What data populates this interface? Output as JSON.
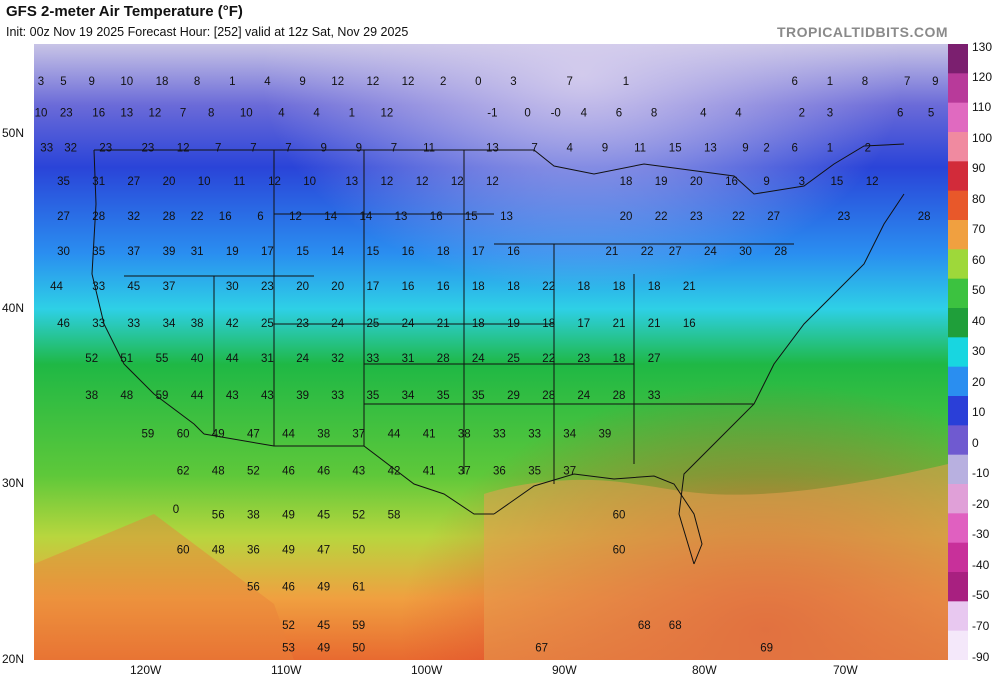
{
  "header": {
    "title": "GFS 2-meter Air Temperature (°F)",
    "subtitle": "Init: 00z Nov 19 2025   Forecast Hour: [252]   valid at 12z Sat, Nov 29 2025",
    "watermark": "TROPICALTIDBITS.COM"
  },
  "axes": {
    "lat_labels": [
      "50N",
      "40N",
      "30N",
      "20N"
    ],
    "lon_labels": [
      "120W",
      "110W",
      "100W",
      "90W",
      "80W",
      "70W"
    ]
  },
  "colorbar": {
    "labels": [
      "130",
      "120",
      "110",
      "100",
      "90",
      "80",
      "70",
      "60",
      "50",
      "40",
      "30",
      "20",
      "10",
      "0",
      "-10",
      "-20",
      "-30",
      "-40",
      "-50",
      "-70",
      "-90"
    ],
    "stops": [
      {
        "v": 130,
        "c": "#7b1f6f"
      },
      {
        "v": 120,
        "c": "#b83a9a"
      },
      {
        "v": 110,
        "c": "#e06ac0"
      },
      {
        "v": 100,
        "c": "#f08aa0"
      },
      {
        "v": 90,
        "c": "#d22b3a"
      },
      {
        "v": 80,
        "c": "#e8582a"
      },
      {
        "v": 70,
        "c": "#f0a040"
      },
      {
        "v": 60,
        "c": "#9ed83a"
      },
      {
        "v": 50,
        "c": "#3cc240"
      },
      {
        "v": 40,
        "c": "#1f9f3a"
      },
      {
        "v": 30,
        "c": "#18d6e0"
      },
      {
        "v": 20,
        "c": "#2a8ef0"
      },
      {
        "v": 10,
        "c": "#2a3fd8"
      },
      {
        "v": 0,
        "c": "#6f5ad0"
      },
      {
        "v": -10,
        "c": "#b8b0e0"
      },
      {
        "v": -20,
        "c": "#e0a0d8"
      },
      {
        "v": -30,
        "c": "#e060c0"
      },
      {
        "v": -40,
        "c": "#c8309a"
      },
      {
        "v": -50,
        "c": "#a82080"
      },
      {
        "v": -70,
        "c": "#e8c8f0"
      },
      {
        "v": -90,
        "c": "#f4e8fa"
      }
    ]
  },
  "map_values": [
    {
      "t": "3",
      "lon": -127.6,
      "lat": 53.0
    },
    {
      "t": "5",
      "lon": -126.0,
      "lat": 53.0
    },
    {
      "t": "9",
      "lon": -124.0,
      "lat": 53.0
    },
    {
      "t": "10",
      "lon": -121.5,
      "lat": 53.0
    },
    {
      "t": "18",
      "lon": -119.0,
      "lat": 53.0
    },
    {
      "t": "8",
      "lon": -116.5,
      "lat": 53.0
    },
    {
      "t": "1",
      "lon": -114.0,
      "lat": 53.0
    },
    {
      "t": "4",
      "lon": -111.5,
      "lat": 53.0
    },
    {
      "t": "9",
      "lon": -109.0,
      "lat": 53.0
    },
    {
      "t": "12",
      "lon": -106.5,
      "lat": 53.0
    },
    {
      "t": "12",
      "lon": -104.0,
      "lat": 53.0
    },
    {
      "t": "12",
      "lon": -101.5,
      "lat": 53.0
    },
    {
      "t": "2",
      "lon": -99.0,
      "lat": 53.0
    },
    {
      "t": "0",
      "lon": -96.5,
      "lat": 53.0
    },
    {
      "t": "3",
      "lon": -94.0,
      "lat": 53.0
    },
    {
      "t": "7",
      "lon": -90.0,
      "lat": 53.0
    },
    {
      "t": "1",
      "lon": -86.0,
      "lat": 53.0
    },
    {
      "t": "6",
      "lon": -74.0,
      "lat": 53.0
    },
    {
      "t": "1",
      "lon": -71.5,
      "lat": 53.0
    },
    {
      "t": "8",
      "lon": -69.0,
      "lat": 53.0
    },
    {
      "t": "7",
      "lon": -66.0,
      "lat": 53.0
    },
    {
      "t": "9",
      "lon": -64.0,
      "lat": 53.0
    },
    {
      "t": "10",
      "lon": -127.6,
      "lat": 51.2
    },
    {
      "t": "23",
      "lon": -125.8,
      "lat": 51.2
    },
    {
      "t": "16",
      "lon": -123.5,
      "lat": 51.2
    },
    {
      "t": "13",
      "lon": -121.5,
      "lat": 51.2
    },
    {
      "t": "12",
      "lon": -119.5,
      "lat": 51.2
    },
    {
      "t": "7",
      "lon": -117.5,
      "lat": 51.2
    },
    {
      "t": "8",
      "lon": -115.5,
      "lat": 51.2
    },
    {
      "t": "10",
      "lon": -113.0,
      "lat": 51.2
    },
    {
      "t": "4",
      "lon": -110.5,
      "lat": 51.2
    },
    {
      "t": "4",
      "lon": -108.0,
      "lat": 51.2
    },
    {
      "t": "1",
      "lon": -105.5,
      "lat": 51.2
    },
    {
      "t": "12",
      "lon": -103.0,
      "lat": 51.2
    },
    {
      "t": "-1",
      "lon": -95.5,
      "lat": 51.2
    },
    {
      "t": "0",
      "lon": -93.0,
      "lat": 51.2
    },
    {
      "t": "-0",
      "lon": -91.0,
      "lat": 51.2
    },
    {
      "t": "4",
      "lon": -89.0,
      "lat": 51.2
    },
    {
      "t": "6",
      "lon": -86.5,
      "lat": 51.2
    },
    {
      "t": "8",
      "lon": -84.0,
      "lat": 51.2
    },
    {
      "t": "4",
      "lon": -80.5,
      "lat": 51.2
    },
    {
      "t": "4",
      "lon": -78.0,
      "lat": 51.2
    },
    {
      "t": "2",
      "lon": -73.5,
      "lat": 51.2
    },
    {
      "t": "3",
      "lon": -71.5,
      "lat": 51.2
    },
    {
      "t": "6",
      "lon": -66.5,
      "lat": 51.2
    },
    {
      "t": "5",
      "lon": -64.3,
      "lat": 51.2
    },
    {
      "t": "33",
      "lon": -127.2,
      "lat": 49.2
    },
    {
      "t": "32",
      "lon": -125.5,
      "lat": 49.2
    },
    {
      "t": "23",
      "lon": -123.0,
      "lat": 49.2
    },
    {
      "t": "23",
      "lon": -120.0,
      "lat": 49.2
    },
    {
      "t": "12",
      "lon": -117.5,
      "lat": 49.2
    },
    {
      "t": "7",
      "lon": -115.0,
      "lat": 49.2
    },
    {
      "t": "7",
      "lon": -112.5,
      "lat": 49.2
    },
    {
      "t": "7",
      "lon": -110.0,
      "lat": 49.2
    },
    {
      "t": "9",
      "lon": -107.5,
      "lat": 49.2
    },
    {
      "t": "9",
      "lon": -105.0,
      "lat": 49.2
    },
    {
      "t": "7",
      "lon": -102.5,
      "lat": 49.2
    },
    {
      "t": "11",
      "lon": -100.0,
      "lat": 49.2
    },
    {
      "t": "13",
      "lon": -95.5,
      "lat": 49.2
    },
    {
      "t": "7",
      "lon": -92.5,
      "lat": 49.2
    },
    {
      "t": "4",
      "lon": -90.0,
      "lat": 49.2
    },
    {
      "t": "9",
      "lon": -87.5,
      "lat": 49.2
    },
    {
      "t": "11",
      "lon": -85.0,
      "lat": 49.2
    },
    {
      "t": "15",
      "lon": -82.5,
      "lat": 49.2
    },
    {
      "t": "13",
      "lon": -80.0,
      "lat": 49.2
    },
    {
      "t": "9",
      "lon": -77.5,
      "lat": 49.2
    },
    {
      "t": "2",
      "lon": -76.0,
      "lat": 49.2
    },
    {
      "t": "6",
      "lon": -74.0,
      "lat": 49.2
    },
    {
      "t": "1",
      "lon": -71.5,
      "lat": 49.2
    },
    {
      "t": "2",
      "lon": -68.8,
      "lat": 49.2
    },
    {
      "t": "35",
      "lon": -126.0,
      "lat": 47.3
    },
    {
      "t": "31",
      "lon": -123.5,
      "lat": 47.3
    },
    {
      "t": "27",
      "lon": -121.0,
      "lat": 47.3
    },
    {
      "t": "20",
      "lon": -118.5,
      "lat": 47.3
    },
    {
      "t": "10",
      "lon": -116.0,
      "lat": 47.3
    },
    {
      "t": "11",
      "lon": -113.5,
      "lat": 47.3
    },
    {
      "t": "12",
      "lon": -111.0,
      "lat": 47.3
    },
    {
      "t": "10",
      "lon": -108.5,
      "lat": 47.3
    },
    {
      "t": "13",
      "lon": -105.5,
      "lat": 47.3
    },
    {
      "t": "12",
      "lon": -103.0,
      "lat": 47.3
    },
    {
      "t": "12",
      "lon": -100.5,
      "lat": 47.3
    },
    {
      "t": "12",
      "lon": -98.0,
      "lat": 47.3
    },
    {
      "t": "12",
      "lon": -95.5,
      "lat": 47.3
    },
    {
      "t": "18",
      "lon": -86.0,
      "lat": 47.3
    },
    {
      "t": "19",
      "lon": -83.5,
      "lat": 47.3
    },
    {
      "t": "20",
      "lon": -81.0,
      "lat": 47.3
    },
    {
      "t": "16",
      "lon": -78.5,
      "lat": 47.3
    },
    {
      "t": "9",
      "lon": -76.0,
      "lat": 47.3
    },
    {
      "t": "3",
      "lon": -73.5,
      "lat": 47.3
    },
    {
      "t": "15",
      "lon": -71.0,
      "lat": 47.3
    },
    {
      "t": "12",
      "lon": -68.5,
      "lat": 47.3
    },
    {
      "t": "27",
      "lon": -126.0,
      "lat": 45.3
    },
    {
      "t": "28",
      "lon": -123.5,
      "lat": 45.3
    },
    {
      "t": "32",
      "lon": -121.0,
      "lat": 45.3
    },
    {
      "t": "28",
      "lon": -118.5,
      "lat": 45.3
    },
    {
      "t": "22",
      "lon": -116.5,
      "lat": 45.3
    },
    {
      "t": "16",
      "lon": -114.5,
      "lat": 45.3
    },
    {
      "t": "6",
      "lon": -112.0,
      "lat": 45.3
    },
    {
      "t": "12",
      "lon": -109.5,
      "lat": 45.3
    },
    {
      "t": "14",
      "lon": -107.0,
      "lat": 45.3
    },
    {
      "t": "14",
      "lon": -104.5,
      "lat": 45.3
    },
    {
      "t": "13",
      "lon": -102.0,
      "lat": 45.3
    },
    {
      "t": "16",
      "lon": -99.5,
      "lat": 45.3
    },
    {
      "t": "15",
      "lon": -97.0,
      "lat": 45.3
    },
    {
      "t": "13",
      "lon": -94.5,
      "lat": 45.3
    },
    {
      "t": "20",
      "lon": -86.0,
      "lat": 45.3
    },
    {
      "t": "22",
      "lon": -83.5,
      "lat": 45.3
    },
    {
      "t": "23",
      "lon": -81.0,
      "lat": 45.3
    },
    {
      "t": "22",
      "lon": -78.0,
      "lat": 45.3
    },
    {
      "t": "27",
      "lon": -75.5,
      "lat": 45.3
    },
    {
      "t": "23",
      "lon": -70.5,
      "lat": 45.3
    },
    {
      "t": "28",
      "lon": -64.8,
      "lat": 45.3
    },
    {
      "t": "30",
      "lon": -126.0,
      "lat": 43.3
    },
    {
      "t": "35",
      "lon": -123.5,
      "lat": 43.3
    },
    {
      "t": "37",
      "lon": -121.0,
      "lat": 43.3
    },
    {
      "t": "39",
      "lon": -118.5,
      "lat": 43.3
    },
    {
      "t": "31",
      "lon": -116.5,
      "lat": 43.3
    },
    {
      "t": "19",
      "lon": -114.0,
      "lat": 43.3
    },
    {
      "t": "17",
      "lon": -111.5,
      "lat": 43.3
    },
    {
      "t": "15",
      "lon": -109.0,
      "lat": 43.3
    },
    {
      "t": "14",
      "lon": -106.5,
      "lat": 43.3
    },
    {
      "t": "15",
      "lon": -104.0,
      "lat": 43.3
    },
    {
      "t": "16",
      "lon": -101.5,
      "lat": 43.3
    },
    {
      "t": "18",
      "lon": -99.0,
      "lat": 43.3
    },
    {
      "t": "17",
      "lon": -96.5,
      "lat": 43.3
    },
    {
      "t": "16",
      "lon": -94.0,
      "lat": 43.3
    },
    {
      "t": "21",
      "lon": -87.0,
      "lat": 43.3
    },
    {
      "t": "22",
      "lon": -84.5,
      "lat": 43.3
    },
    {
      "t": "27",
      "lon": -82.5,
      "lat": 43.3
    },
    {
      "t": "24",
      "lon": -80.0,
      "lat": 43.3
    },
    {
      "t": "30",
      "lon": -77.5,
      "lat": 43.3
    },
    {
      "t": "28",
      "lon": -75.0,
      "lat": 43.3
    },
    {
      "t": "44",
      "lon": -126.5,
      "lat": 41.3
    },
    {
      "t": "33",
      "lon": -123.5,
      "lat": 41.3
    },
    {
      "t": "45",
      "lon": -121.0,
      "lat": 41.3
    },
    {
      "t": "37",
      "lon": -118.5,
      "lat": 41.3
    },
    {
      "t": "30",
      "lon": -114.0,
      "lat": 41.3
    },
    {
      "t": "23",
      "lon": -111.5,
      "lat": 41.3
    },
    {
      "t": "20",
      "lon": -109.0,
      "lat": 41.3
    },
    {
      "t": "20",
      "lon": -106.5,
      "lat": 41.3
    },
    {
      "t": "17",
      "lon": -104.0,
      "lat": 41.3
    },
    {
      "t": "16",
      "lon": -101.5,
      "lat": 41.3
    },
    {
      "t": "16",
      "lon": -99.0,
      "lat": 41.3
    },
    {
      "t": "18",
      "lon": -96.5,
      "lat": 41.3
    },
    {
      "t": "18",
      "lon": -94.0,
      "lat": 41.3
    },
    {
      "t": "22",
      "lon": -91.5,
      "lat": 41.3
    },
    {
      "t": "18",
      "lon": -89.0,
      "lat": 41.3
    },
    {
      "t": "18",
      "lon": -86.5,
      "lat": 41.3
    },
    {
      "t": "18",
      "lon": -84.0,
      "lat": 41.3
    },
    {
      "t": "21",
      "lon": -81.5,
      "lat": 41.3
    },
    {
      "t": "46",
      "lon": -126.0,
      "lat": 39.2
    },
    {
      "t": "33",
      "lon": -123.5,
      "lat": 39.2
    },
    {
      "t": "33",
      "lon": -121.0,
      "lat": 39.2
    },
    {
      "t": "34",
      "lon": -118.5,
      "lat": 39.2
    },
    {
      "t": "38",
      "lon": -116.5,
      "lat": 39.2
    },
    {
      "t": "42",
      "lon": -114.0,
      "lat": 39.2
    },
    {
      "t": "25",
      "lon": -111.5,
      "lat": 39.2
    },
    {
      "t": "23",
      "lon": -109.0,
      "lat": 39.2
    },
    {
      "t": "24",
      "lon": -106.5,
      "lat": 39.2
    },
    {
      "t": "25",
      "lon": -104.0,
      "lat": 39.2
    },
    {
      "t": "24",
      "lon": -101.5,
      "lat": 39.2
    },
    {
      "t": "21",
      "lon": -99.0,
      "lat": 39.2
    },
    {
      "t": "18",
      "lon": -96.5,
      "lat": 39.2
    },
    {
      "t": "19",
      "lon": -94.0,
      "lat": 39.2
    },
    {
      "t": "18",
      "lon": -91.5,
      "lat": 39.2
    },
    {
      "t": "17",
      "lon": -89.0,
      "lat": 39.2
    },
    {
      "t": "21",
      "lon": -86.5,
      "lat": 39.2
    },
    {
      "t": "21",
      "lon": -84.0,
      "lat": 39.2
    },
    {
      "t": "16",
      "lon": -81.5,
      "lat": 39.2
    },
    {
      "t": "52",
      "lon": -124.0,
      "lat": 37.2
    },
    {
      "t": "51",
      "lon": -121.5,
      "lat": 37.2
    },
    {
      "t": "55",
      "lon": -119.0,
      "lat": 37.2
    },
    {
      "t": "40",
      "lon": -116.5,
      "lat": 37.2
    },
    {
      "t": "44",
      "lon": -114.0,
      "lat": 37.2
    },
    {
      "t": "31",
      "lon": -111.5,
      "lat": 37.2
    },
    {
      "t": "24",
      "lon": -109.0,
      "lat": 37.2
    },
    {
      "t": "32",
      "lon": -106.5,
      "lat": 37.2
    },
    {
      "t": "33",
      "lon": -104.0,
      "lat": 37.2
    },
    {
      "t": "31",
      "lon": -101.5,
      "lat": 37.2
    },
    {
      "t": "28",
      "lon": -99.0,
      "lat": 37.2
    },
    {
      "t": "24",
      "lon": -96.5,
      "lat": 37.2
    },
    {
      "t": "25",
      "lon": -94.0,
      "lat": 37.2
    },
    {
      "t": "22",
      "lon": -91.5,
      "lat": 37.2
    },
    {
      "t": "23",
      "lon": -89.0,
      "lat": 37.2
    },
    {
      "t": "18",
      "lon": -86.5,
      "lat": 37.2
    },
    {
      "t": "27",
      "lon": -84.0,
      "lat": 37.2
    },
    {
      "t": "38",
      "lon": -124.0,
      "lat": 35.1
    },
    {
      "t": "48",
      "lon": -121.5,
      "lat": 35.1
    },
    {
      "t": "59",
      "lon": -119.0,
      "lat": 35.1
    },
    {
      "t": "44",
      "lon": -116.5,
      "lat": 35.1
    },
    {
      "t": "43",
      "lon": -114.0,
      "lat": 35.1
    },
    {
      "t": "43",
      "lon": -111.5,
      "lat": 35.1
    },
    {
      "t": "39",
      "lon": -109.0,
      "lat": 35.1
    },
    {
      "t": "33",
      "lon": -106.5,
      "lat": 35.1
    },
    {
      "t": "35",
      "lon": -104.0,
      "lat": 35.1
    },
    {
      "t": "34",
      "lon": -101.5,
      "lat": 35.1
    },
    {
      "t": "35",
      "lon": -99.0,
      "lat": 35.1
    },
    {
      "t": "35",
      "lon": -96.5,
      "lat": 35.1
    },
    {
      "t": "29",
      "lon": -94.0,
      "lat": 35.1
    },
    {
      "t": "28",
      "lon": -91.5,
      "lat": 35.1
    },
    {
      "t": "24",
      "lon": -89.0,
      "lat": 35.1
    },
    {
      "t": "28",
      "lon": -86.5,
      "lat": 35.1
    },
    {
      "t": "33",
      "lon": -84.0,
      "lat": 35.1
    },
    {
      "t": "59",
      "lon": -120.0,
      "lat": 32.9
    },
    {
      "t": "60",
      "lon": -117.5,
      "lat": 32.9
    },
    {
      "t": "49",
      "lon": -115.0,
      "lat": 32.9
    },
    {
      "t": "47",
      "lon": -112.5,
      "lat": 32.9
    },
    {
      "t": "44",
      "lon": -110.0,
      "lat": 32.9
    },
    {
      "t": "38",
      "lon": -107.5,
      "lat": 32.9
    },
    {
      "t": "37",
      "lon": -105.0,
      "lat": 32.9
    },
    {
      "t": "44",
      "lon": -102.5,
      "lat": 32.9
    },
    {
      "t": "41",
      "lon": -100.0,
      "lat": 32.9
    },
    {
      "t": "38",
      "lon": -97.5,
      "lat": 32.9
    },
    {
      "t": "33",
      "lon": -95.0,
      "lat": 32.9
    },
    {
      "t": "33",
      "lon": -92.5,
      "lat": 32.9
    },
    {
      "t": "34",
      "lon": -90.0,
      "lat": 32.9
    },
    {
      "t": "39",
      "lon": -87.5,
      "lat": 32.9
    },
    {
      "t": "62",
      "lon": -117.5,
      "lat": 30.8
    },
    {
      "t": "48",
      "lon": -115.0,
      "lat": 30.8
    },
    {
      "t": "52",
      "lon": -112.5,
      "lat": 30.8
    },
    {
      "t": "46",
      "lon": -110.0,
      "lat": 30.8
    },
    {
      "t": "46",
      "lon": -107.5,
      "lat": 30.8
    },
    {
      "t": "43",
      "lon": -105.0,
      "lat": 30.8
    },
    {
      "t": "42",
      "lon": -102.5,
      "lat": 30.8
    },
    {
      "t": "41",
      "lon": -100.0,
      "lat": 30.8
    },
    {
      "t": "37",
      "lon": -97.5,
      "lat": 30.8
    },
    {
      "t": "36",
      "lon": -95.0,
      "lat": 30.8
    },
    {
      "t": "35",
      "lon": -92.5,
      "lat": 30.8
    },
    {
      "t": "37",
      "lon": -90.0,
      "lat": 30.8
    },
    {
      "t": "0",
      "lon": -118.0,
      "lat": 28.6
    },
    {
      "t": "56",
      "lon": -115.0,
      "lat": 28.3
    },
    {
      "t": "38",
      "lon": -112.5,
      "lat": 28.3
    },
    {
      "t": "49",
      "lon": -110.0,
      "lat": 28.3
    },
    {
      "t": "45",
      "lon": -107.5,
      "lat": 28.3
    },
    {
      "t": "52",
      "lon": -105.0,
      "lat": 28.3
    },
    {
      "t": "58",
      "lon": -102.5,
      "lat": 28.3
    },
    {
      "t": "60",
      "lon": -86.5,
      "lat": 28.3
    },
    {
      "t": "60",
      "lon": -117.5,
      "lat": 26.3
    },
    {
      "t": "48",
      "lon": -115.0,
      "lat": 26.3
    },
    {
      "t": "36",
      "lon": -112.5,
      "lat": 26.3
    },
    {
      "t": "49",
      "lon": -110.0,
      "lat": 26.3
    },
    {
      "t": "47",
      "lon": -107.5,
      "lat": 26.3
    },
    {
      "t": "50",
      "lon": -105.0,
      "lat": 26.3
    },
    {
      "t": "60",
      "lon": -86.5,
      "lat": 26.3
    },
    {
      "t": "56",
      "lon": -112.5,
      "lat": 24.2
    },
    {
      "t": "46",
      "lon": -110.0,
      "lat": 24.2
    },
    {
      "t": "49",
      "lon": -107.5,
      "lat": 24.2
    },
    {
      "t": "61",
      "lon": -105.0,
      "lat": 24.2
    },
    {
      "t": "52",
      "lon": -110.0,
      "lat": 22.0
    },
    {
      "t": "45",
      "lon": -107.5,
      "lat": 22.0
    },
    {
      "t": "59",
      "lon": -105.0,
      "lat": 22.0
    },
    {
      "t": "68",
      "lon": -84.7,
      "lat": 22.0
    },
    {
      "t": "68",
      "lon": -82.5,
      "lat": 22.0
    },
    {
      "t": "53",
      "lon": -110.0,
      "lat": 20.7
    },
    {
      "t": "49",
      "lon": -107.5,
      "lat": 20.7
    },
    {
      "t": "50",
      "lon": -105.0,
      "lat": 20.7
    },
    {
      "t": "67",
      "lon": -92.0,
      "lat": 20.7
    },
    {
      "t": "69",
      "lon": -76.0,
      "lat": 20.7
    }
  ]
}
